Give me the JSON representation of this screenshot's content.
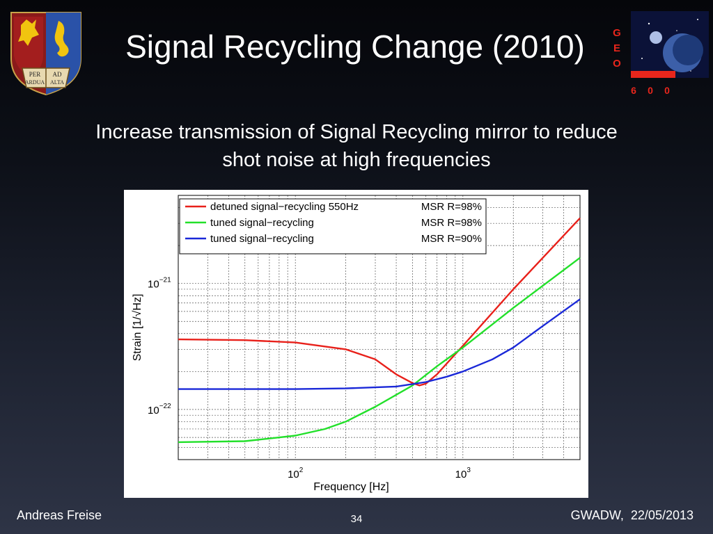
{
  "slide": {
    "title": "Signal Recycling Change (2010)",
    "subtitle_line1": "Increase transmission of Signal Recycling mirror to reduce",
    "subtitle_line2": "shot noise at high frequencies",
    "author": "Andreas Freise",
    "page_number": "34",
    "event_date": "GWADW,  22/05/2013"
  },
  "logos": {
    "crest_book_text": [
      "PER",
      "AD",
      "ARDUA",
      "ALTA"
    ],
    "geo_letters": [
      "G",
      "E",
      "O"
    ],
    "geo_number": [
      "6",
      "0",
      "0"
    ],
    "geo_color": "#e8261c"
  },
  "chart_data": {
    "type": "line",
    "x_scale": "log",
    "y_scale": "log",
    "xlim": [
      20,
      5000
    ],
    "ylim": [
      4e-23,
      5e-21
    ],
    "xlabel": "Frequency [Hz]",
    "ylabel": "Strain [1/√Hz]",
    "x_ticks": [
      {
        "value": 100,
        "base": "10",
        "exp": "2"
      },
      {
        "value": 1000,
        "base": "10",
        "exp": "3"
      }
    ],
    "y_ticks": [
      {
        "value": 1e-21,
        "base": "10",
        "exp": "−21"
      },
      {
        "value": 1e-22,
        "base": "10",
        "exp": "−22"
      }
    ],
    "grid": true,
    "legend_position": "top-left",
    "series": [
      {
        "name": "detuned signal−recycling 550Hz",
        "note": "MSR R=98%",
        "color": "#e8201a",
        "x": [
          20,
          50,
          100,
          200,
          300,
          400,
          500,
          550,
          600,
          700,
          1000,
          2000,
          5000
        ],
        "y": [
          3.6e-22,
          3.55e-22,
          3.4e-22,
          3e-22,
          2.5e-22,
          1.9e-22,
          1.62e-22,
          1.55e-22,
          1.6e-22,
          1.9e-22,
          3.2e-22,
          9e-22,
          3.3e-21
        ]
      },
      {
        "name": "tuned signal−recycling",
        "note": "MSR R=98%",
        "color": "#22e02a",
        "x": [
          20,
          50,
          100,
          150,
          200,
          300,
          500,
          700,
          1000,
          2000,
          5000
        ],
        "y": [
          5.5e-23,
          5.6e-23,
          6.2e-23,
          7e-23,
          8e-23,
          1.05e-22,
          1.55e-22,
          2.2e-22,
          3.1e-22,
          6.4e-22,
          1.6e-21
        ]
      },
      {
        "name": "tuned signal−recycling",
        "note": "MSR R=90%",
        "color": "#1a28d8",
        "x": [
          20,
          100,
          200,
          400,
          600,
          800,
          1000,
          1500,
          2000,
          3000,
          5000
        ],
        "y": [
          1.45e-22,
          1.45e-22,
          1.47e-22,
          1.52e-22,
          1.65e-22,
          1.82e-22,
          2e-22,
          2.5e-22,
          3.1e-22,
          4.6e-22,
          7.5e-22
        ]
      }
    ]
  }
}
